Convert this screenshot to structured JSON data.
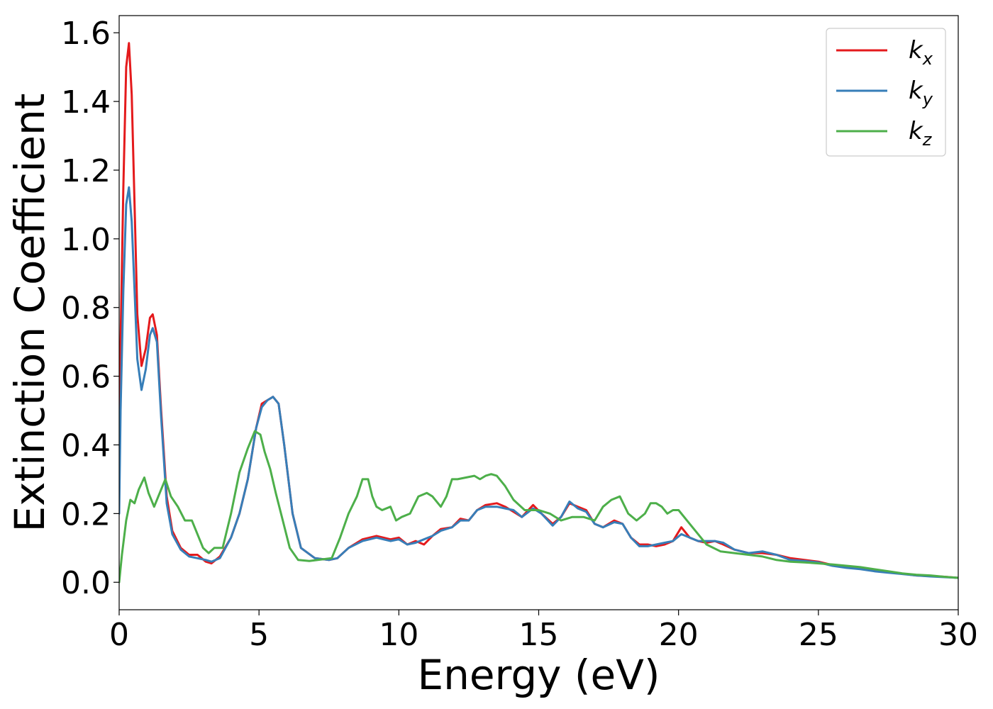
{
  "chart_data": {
    "type": "line",
    "title": "",
    "xlabel": "Energy (eV)",
    "ylabel": "Extinction Coefficient",
    "xlim": [
      0,
      30
    ],
    "ylim": [
      -0.08,
      1.65
    ],
    "xticks": [
      0,
      5,
      10,
      15,
      20,
      25,
      30
    ],
    "xtick_labels": [
      "0",
      "5",
      "10",
      "15",
      "20",
      "25",
      "30"
    ],
    "yticks": [
      0.0,
      0.2,
      0.4,
      0.6,
      0.8,
      1.0,
      1.2,
      1.4,
      1.6
    ],
    "ytick_labels": [
      "0.0",
      "0.2",
      "0.4",
      "0.6",
      "0.8",
      "1.0",
      "1.2",
      "1.4",
      "1.6"
    ],
    "grid": false,
    "legend_position": "top-right",
    "series": [
      {
        "name": "k_x",
        "label_base": "k",
        "label_sub": "x",
        "color": "#e41a1c",
        "x": [
          0,
          0.05,
          0.15,
          0.25,
          0.35,
          0.45,
          0.55,
          0.65,
          0.8,
          0.95,
          1.1,
          1.2,
          1.35,
          1.5,
          1.7,
          1.9,
          2.2,
          2.5,
          2.8,
          3.1,
          3.3,
          3.6,
          4.0,
          4.3,
          4.6,
          4.9,
          5.1,
          5.3,
          5.5,
          5.7,
          5.9,
          6.2,
          6.5,
          7.0,
          7.5,
          7.8,
          8.2,
          8.7,
          9.2,
          9.7,
          10.0,
          10.3,
          10.6,
          10.9,
          11.2,
          11.5,
          11.9,
          12.2,
          12.5,
          12.8,
          13.1,
          13.5,
          13.8,
          14.1,
          14.4,
          14.8,
          15.1,
          15.5,
          15.8,
          16.1,
          16.4,
          16.7,
          17.0,
          17.3,
          17.7,
          18.0,
          18.3,
          18.6,
          18.9,
          19.2,
          19.5,
          19.8,
          20.1,
          20.4,
          20.7,
          21.0,
          21.3,
          21.6,
          22.0,
          22.5,
          23.0,
          23.5,
          24.0,
          24.5,
          25.0,
          25.5,
          26.0,
          26.5,
          27.0,
          27.5,
          28.0,
          28.5,
          29.0,
          29.5,
          30.0
        ],
        "values": [
          0.32,
          0.7,
          1.15,
          1.5,
          1.57,
          1.42,
          1.1,
          0.78,
          0.63,
          0.68,
          0.77,
          0.78,
          0.72,
          0.5,
          0.25,
          0.15,
          0.1,
          0.08,
          0.08,
          0.06,
          0.055,
          0.075,
          0.13,
          0.2,
          0.3,
          0.45,
          0.52,
          0.53,
          0.54,
          0.52,
          0.4,
          0.2,
          0.1,
          0.07,
          0.065,
          0.07,
          0.1,
          0.125,
          0.135,
          0.125,
          0.13,
          0.11,
          0.12,
          0.11,
          0.135,
          0.155,
          0.16,
          0.185,
          0.18,
          0.21,
          0.225,
          0.23,
          0.22,
          0.205,
          0.19,
          0.225,
          0.2,
          0.17,
          0.19,
          0.23,
          0.22,
          0.21,
          0.17,
          0.16,
          0.18,
          0.17,
          0.13,
          0.11,
          0.11,
          0.105,
          0.11,
          0.12,
          0.16,
          0.13,
          0.12,
          0.115,
          0.12,
          0.11,
          0.095,
          0.085,
          0.085,
          0.08,
          0.07,
          0.065,
          0.06,
          0.05,
          0.045,
          0.04,
          0.035,
          0.03,
          0.025,
          0.02,
          0.018,
          0.016,
          0.013
        ]
      },
      {
        "name": "k_y",
        "label_base": "k",
        "label_sub": "y",
        "color": "#377eb8",
        "x": [
          0,
          0.05,
          0.15,
          0.25,
          0.35,
          0.45,
          0.55,
          0.65,
          0.8,
          0.95,
          1.1,
          1.2,
          1.35,
          1.5,
          1.7,
          1.9,
          2.2,
          2.5,
          2.8,
          3.1,
          3.3,
          3.6,
          4.0,
          4.3,
          4.6,
          4.9,
          5.1,
          5.3,
          5.5,
          5.7,
          5.9,
          6.2,
          6.5,
          7.0,
          7.5,
          7.8,
          8.2,
          8.7,
          9.2,
          9.7,
          10.0,
          10.3,
          10.6,
          10.9,
          11.2,
          11.5,
          11.9,
          12.2,
          12.5,
          12.8,
          13.1,
          13.5,
          13.8,
          14.1,
          14.4,
          14.8,
          15.1,
          15.5,
          15.8,
          16.1,
          16.4,
          16.7,
          17.0,
          17.3,
          17.7,
          18.0,
          18.3,
          18.6,
          18.9,
          19.2,
          19.5,
          19.8,
          20.1,
          20.4,
          20.7,
          21.0,
          21.3,
          21.6,
          22.0,
          22.5,
          23.0,
          23.5,
          24.0,
          24.5,
          25.0,
          25.5,
          26.0,
          26.5,
          27.0,
          27.5,
          28.0,
          28.5,
          29.0,
          29.5,
          30.0
        ],
        "values": [
          0.2,
          0.5,
          0.85,
          1.1,
          1.15,
          1.05,
          0.85,
          0.65,
          0.56,
          0.62,
          0.72,
          0.74,
          0.7,
          0.48,
          0.23,
          0.14,
          0.095,
          0.075,
          0.07,
          0.065,
          0.06,
          0.07,
          0.13,
          0.2,
          0.3,
          0.45,
          0.51,
          0.53,
          0.54,
          0.52,
          0.4,
          0.2,
          0.1,
          0.07,
          0.065,
          0.07,
          0.1,
          0.12,
          0.13,
          0.12,
          0.125,
          0.11,
          0.115,
          0.125,
          0.135,
          0.15,
          0.16,
          0.18,
          0.18,
          0.21,
          0.22,
          0.22,
          0.215,
          0.21,
          0.19,
          0.215,
          0.2,
          0.165,
          0.19,
          0.235,
          0.215,
          0.205,
          0.17,
          0.16,
          0.175,
          0.17,
          0.13,
          0.105,
          0.105,
          0.11,
          0.115,
          0.12,
          0.14,
          0.13,
          0.12,
          0.12,
          0.12,
          0.115,
          0.095,
          0.085,
          0.09,
          0.08,
          0.065,
          0.062,
          0.058,
          0.048,
          0.042,
          0.038,
          0.032,
          0.028,
          0.024,
          0.02,
          0.017,
          0.015,
          0.013
        ]
      },
      {
        "name": "k_z",
        "label_base": "k",
        "label_sub": "z",
        "color": "#4daf4a",
        "x": [
          0,
          0.1,
          0.25,
          0.4,
          0.55,
          0.7,
          0.9,
          1.05,
          1.25,
          1.45,
          1.65,
          1.85,
          2.1,
          2.35,
          2.6,
          2.8,
          3.0,
          3.2,
          3.4,
          3.7,
          4.0,
          4.3,
          4.6,
          4.85,
          5.05,
          5.2,
          5.4,
          5.6,
          5.85,
          6.1,
          6.4,
          6.8,
          7.2,
          7.6,
          7.9,
          8.2,
          8.5,
          8.7,
          8.9,
          9.05,
          9.2,
          9.4,
          9.7,
          9.9,
          10.1,
          10.4,
          10.7,
          11.0,
          11.2,
          11.5,
          11.7,
          11.9,
          12.1,
          12.4,
          12.7,
          12.9,
          13.1,
          13.3,
          13.5,
          13.8,
          14.1,
          14.5,
          15.0,
          15.4,
          15.8,
          16.2,
          16.6,
          17.0,
          17.3,
          17.6,
          17.9,
          18.2,
          18.5,
          18.8,
          19.0,
          19.2,
          19.4,
          19.6,
          19.8,
          20.0,
          20.3,
          20.7,
          21.0,
          21.5,
          22.0,
          22.5,
          23.0,
          23.5,
          24.0,
          24.5,
          25.0,
          25.5,
          26.0,
          26.5,
          27.0,
          27.5,
          28.0,
          28.5,
          29.0,
          29.5,
          30.0
        ],
        "values": [
          0.0,
          0.08,
          0.18,
          0.24,
          0.23,
          0.27,
          0.305,
          0.26,
          0.22,
          0.26,
          0.3,
          0.25,
          0.22,
          0.18,
          0.18,
          0.14,
          0.1,
          0.085,
          0.1,
          0.1,
          0.2,
          0.32,
          0.39,
          0.44,
          0.43,
          0.38,
          0.33,
          0.26,
          0.18,
          0.1,
          0.065,
          0.062,
          0.066,
          0.07,
          0.13,
          0.2,
          0.25,
          0.3,
          0.3,
          0.25,
          0.22,
          0.21,
          0.22,
          0.18,
          0.19,
          0.2,
          0.25,
          0.26,
          0.25,
          0.22,
          0.25,
          0.3,
          0.3,
          0.305,
          0.31,
          0.3,
          0.31,
          0.315,
          0.31,
          0.28,
          0.24,
          0.21,
          0.21,
          0.2,
          0.18,
          0.19,
          0.19,
          0.18,
          0.22,
          0.24,
          0.25,
          0.2,
          0.18,
          0.2,
          0.23,
          0.23,
          0.22,
          0.2,
          0.21,
          0.21,
          0.18,
          0.14,
          0.11,
          0.09,
          0.085,
          0.08,
          0.075,
          0.065,
          0.06,
          0.058,
          0.055,
          0.052,
          0.048,
          0.044,
          0.038,
          0.032,
          0.026,
          0.022,
          0.02,
          0.016,
          0.013
        ]
      }
    ]
  }
}
